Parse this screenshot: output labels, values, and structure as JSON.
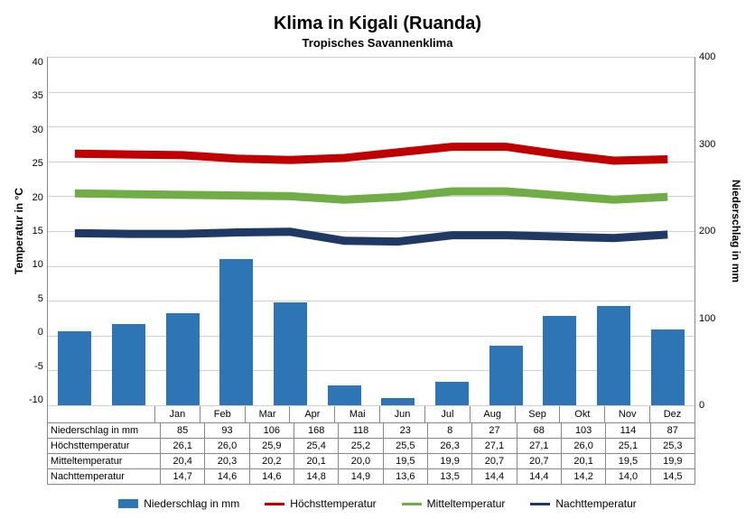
{
  "title": "Klima in Kigali (Ruanda)",
  "subtitle": "Tropisches Savannenklima",
  "y_left": {
    "label": "Temperatur in °C",
    "min": -10,
    "max": 40,
    "step": 5,
    "fontsize": 11
  },
  "y_right": {
    "label": "Niederschlag in mm",
    "min": 0,
    "max": 400,
    "step": 100,
    "fontsize": 11
  },
  "months": [
    "Jan",
    "Feb",
    "Mar",
    "Apr",
    "Mai",
    "Jun",
    "Jul",
    "Aug",
    "Sep",
    "Okt",
    "Nov",
    "Dez"
  ],
  "bar_series": {
    "label": "Niederschlag in mm",
    "color": "#2e75b6",
    "values": [
      85,
      93,
      106,
      168,
      118,
      23,
      8,
      27,
      68,
      103,
      114,
      87
    ]
  },
  "line_series": [
    {
      "label": "Höchsttemperatur",
      "color": "#c00000",
      "width": 3,
      "values": [
        26.1,
        26.0,
        25.9,
        25.4,
        25.2,
        25.5,
        26.3,
        27.1,
        27.1,
        26.0,
        25.1,
        25.3
      ]
    },
    {
      "label": "Mitteltemperatur",
      "color": "#70ad47",
      "width": 3,
      "values": [
        20.4,
        20.3,
        20.2,
        20.1,
        20.0,
        19.5,
        19.9,
        20.7,
        20.7,
        20.1,
        19.5,
        19.9
      ]
    },
    {
      "label": "Nachttemperatur",
      "color": "#1f3864",
      "width": 3,
      "values": [
        14.7,
        14.6,
        14.6,
        14.8,
        14.9,
        13.6,
        13.5,
        14.4,
        14.4,
        14.2,
        14.0,
        14.5
      ]
    }
  ],
  "grid_color": "#d0d0d0",
  "background_color": "#ffffff",
  "title_fontsize": 20,
  "subtitle_fontsize": 13
}
